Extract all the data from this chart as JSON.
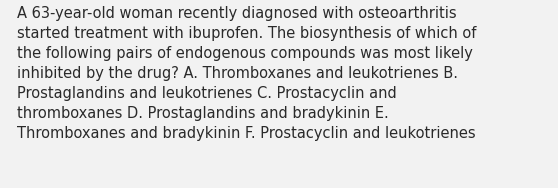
{
  "lines": [
    "A 63-year-old woman recently diagnosed with osteoarthritis",
    "started treatment with ibuprofen. The biosynthesis of which of",
    "the following pairs of endogenous compounds was most likely",
    "inhibited by the drug? A. Thromboxanes and leukotrienes B.",
    "Prostaglandins and leukotrienes C. Prostacyclin and",
    "thromboxanes D. Prostaglandins and bradykinin E.",
    "Thromboxanes and bradykinin F. Prostacyclin and leukotrienes"
  ],
  "background_color": "#f2f2f2",
  "text_color": "#2a2a2a",
  "font_size": 10.5,
  "fig_width": 5.58,
  "fig_height": 1.88,
  "dpi": 100
}
